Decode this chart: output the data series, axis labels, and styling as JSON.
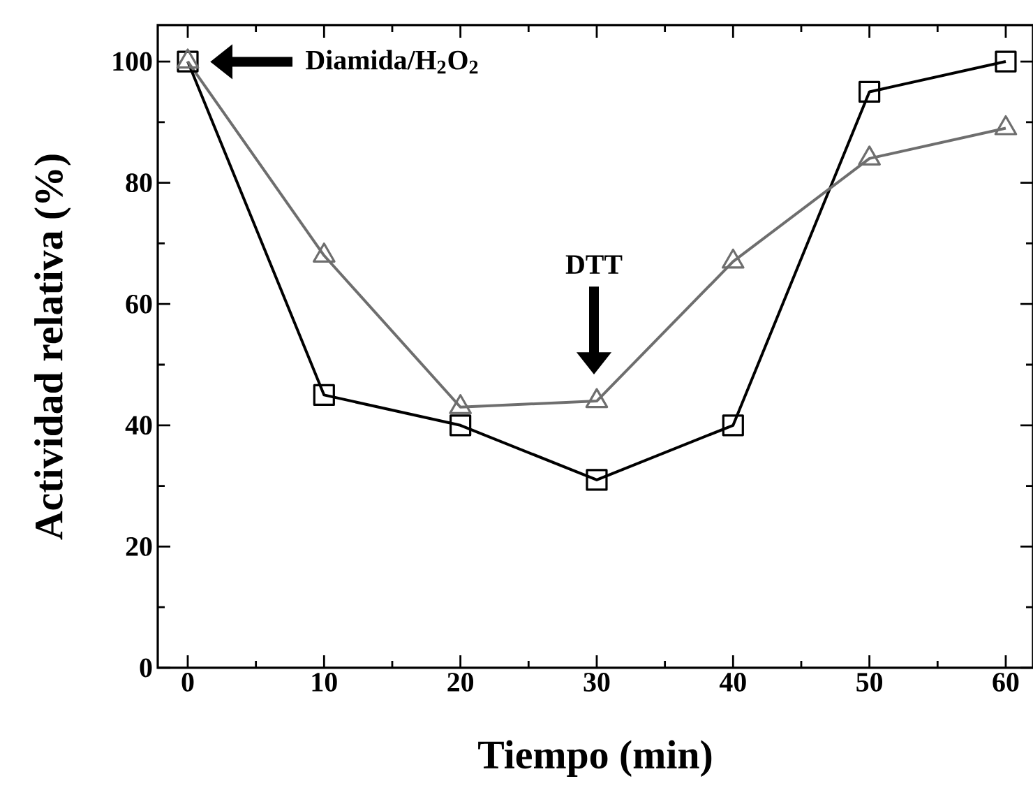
{
  "chart_data": {
    "type": "line",
    "xlabel": "Tiempo (min)",
    "ylabel": "Actividad relativa (%)",
    "x": [
      0,
      10,
      20,
      30,
      40,
      50,
      60
    ],
    "series": [
      {
        "color": "#000000",
        "marker": "square",
        "values": [
          100,
          45,
          40,
          31,
          40,
          95,
          100
        ]
      },
      {
        "color": "#6e6e6e",
        "marker": "triangle",
        "values": [
          100,
          68,
          43,
          44,
          67,
          84,
          89
        ]
      }
    ],
    "xlim": [
      -2.2,
      62
    ],
    "ylim": [
      0,
      106
    ],
    "xticks": [
      0,
      10,
      20,
      30,
      40,
      50,
      60
    ],
    "yticks": [
      0,
      20,
      40,
      60,
      80,
      100
    ],
    "annotations": [
      "Diamida/H$_{2}$O$_{2}$",
      "DTT"
    ]
  }
}
